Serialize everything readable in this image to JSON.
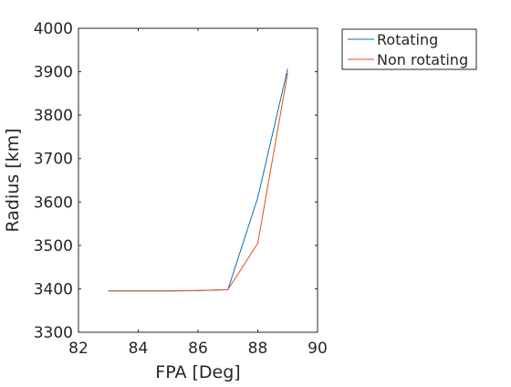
{
  "chart_data": {
    "type": "line",
    "title": "",
    "xlabel": "FPA [Deg]",
    "ylabel": "Radius [km]",
    "xlim": [
      82,
      90
    ],
    "ylim": [
      3300,
      4000
    ],
    "xticks": [
      82,
      84,
      86,
      88,
      90
    ],
    "yticks": [
      3300,
      3400,
      3500,
      3600,
      3700,
      3800,
      3900,
      4000
    ],
    "grid": false,
    "legend_placement": "outside-top-right",
    "series": [
      {
        "name": "Rotating",
        "color": "#0072BD",
        "x": [
          83,
          84,
          85,
          86,
          87,
          88,
          89
        ],
        "y": [
          3395,
          3395,
          3395,
          3396,
          3398,
          3610,
          3907
        ]
      },
      {
        "name": "Non rotating",
        "color": "#D95319",
        "x": [
          83,
          84,
          85,
          86,
          87,
          88,
          89
        ],
        "y": [
          3395,
          3395,
          3395,
          3396,
          3398,
          3505,
          3897
        ]
      }
    ]
  }
}
